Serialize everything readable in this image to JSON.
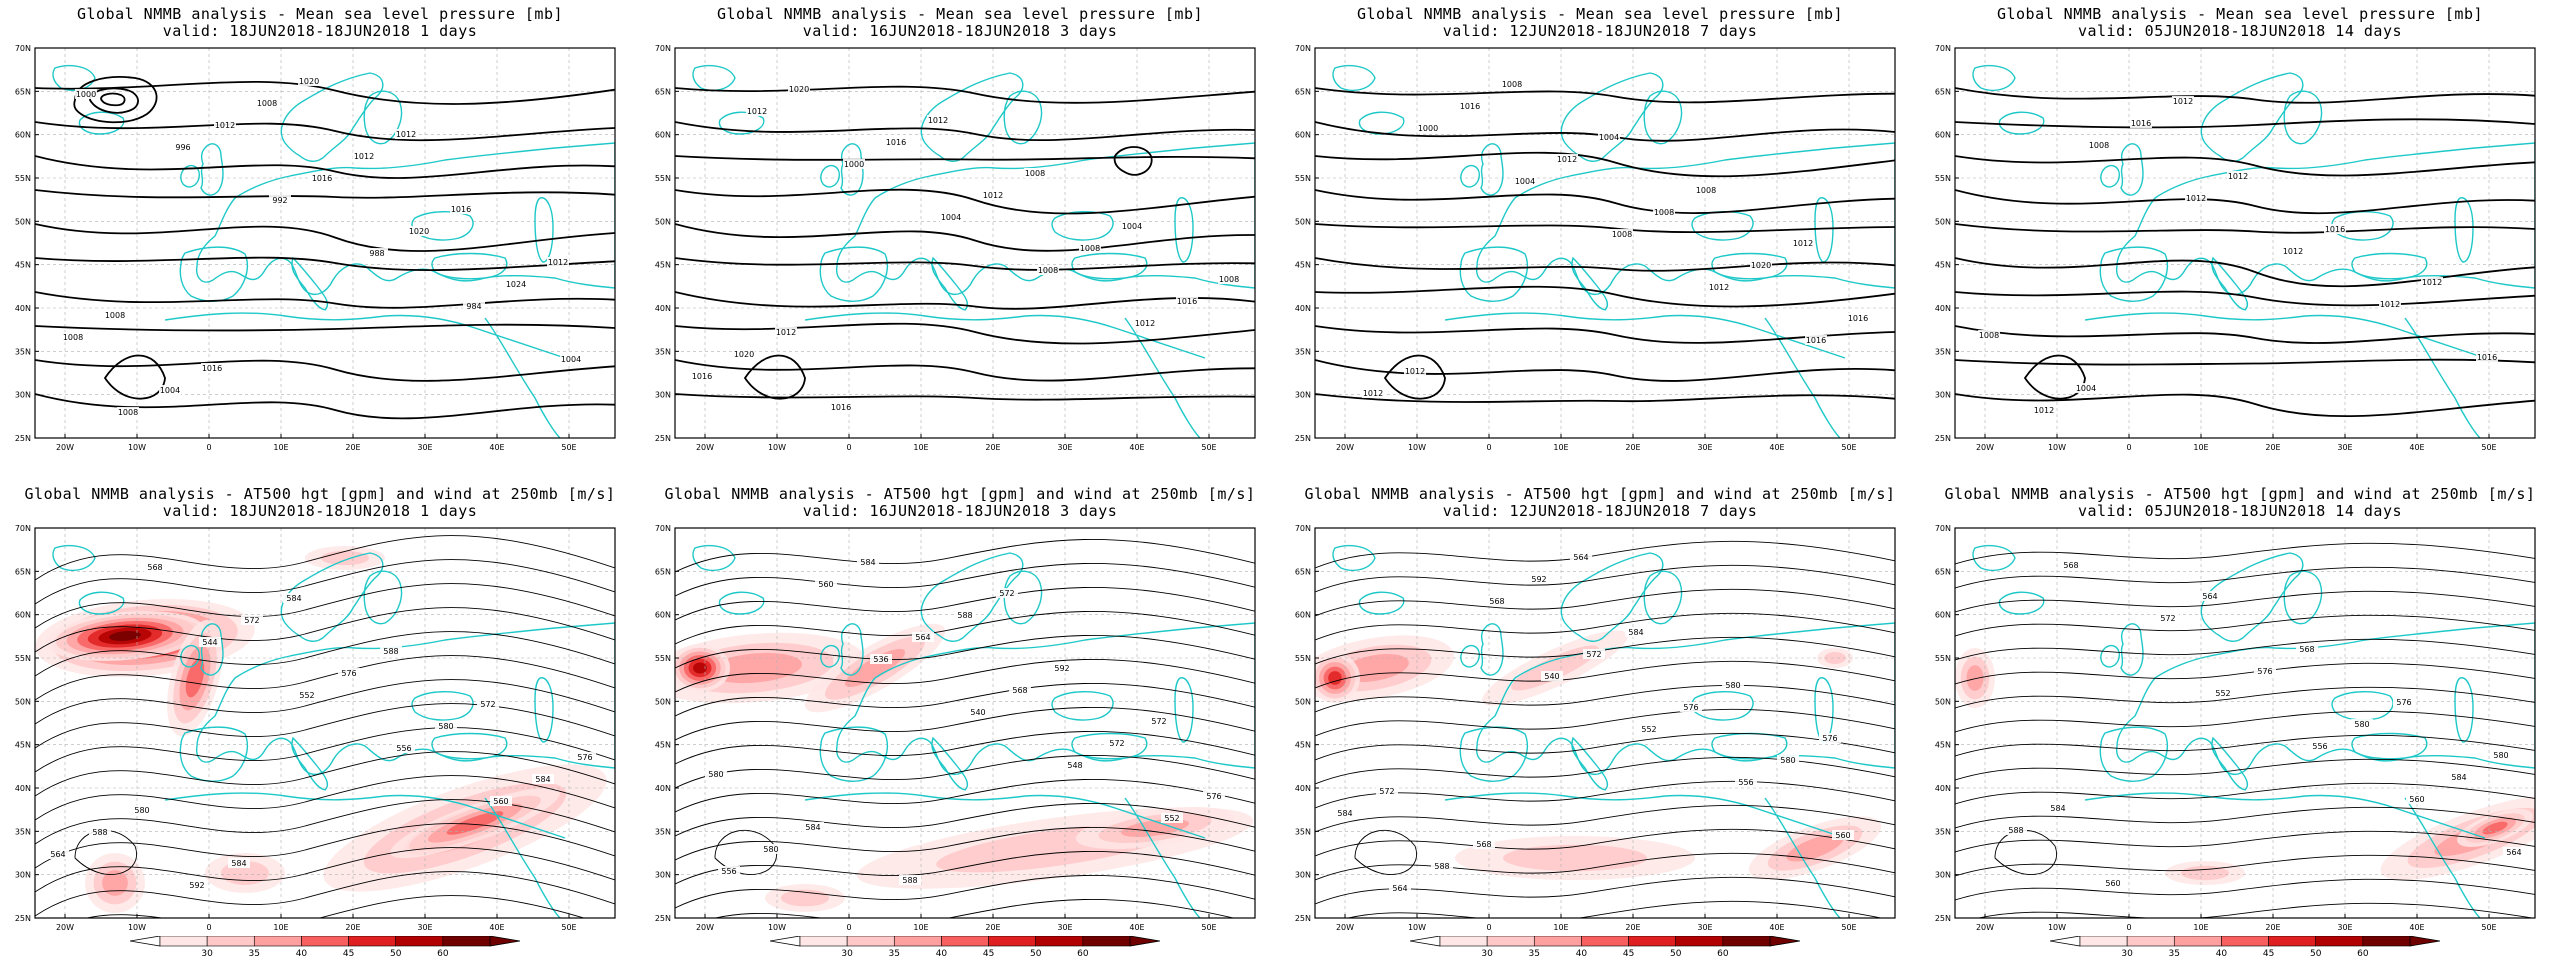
{
  "panels": [
    {
      "row": 0,
      "col": 0,
      "title1": "Global NMMB analysis - Mean sea level pressure [mb]",
      "title2": "valid: 18JUN2018-18JUN2018   1 days"
    },
    {
      "row": 0,
      "col": 1,
      "title1": "Global NMMB analysis - Mean sea level pressure [mb]",
      "title2": "valid: 16JUN2018-18JUN2018   3 days"
    },
    {
      "row": 0,
      "col": 2,
      "title1": "Global NMMB analysis - Mean sea level pressure [mb]",
      "title2": "valid: 12JUN2018-18JUN2018   7 days"
    },
    {
      "row": 0,
      "col": 3,
      "title1": "Global NMMB analysis - Mean sea level pressure [mb]",
      "title2": "valid: 05JUN2018-18JUN2018   14 days"
    },
    {
      "row": 1,
      "col": 0,
      "title1": "Global NMMB analysis - AT500 hgt [gpm] and wind at 250mb [m/s]",
      "title2": "valid: 18JUN2018-18JUN2018   1 days"
    },
    {
      "row": 1,
      "col": 1,
      "title1": "Global NMMB analysis - AT500 hgt [gpm] and wind at 250mb [m/s]",
      "title2": "valid: 16JUN2018-18JUN2018   3 days"
    },
    {
      "row": 1,
      "col": 2,
      "title1": "Global NMMB analysis - AT500 hgt [gpm] and wind at 250mb [m/s]",
      "title2": "valid: 12JUN2018-18JUN2018   7 days"
    },
    {
      "row": 1,
      "col": 3,
      "title1": "Global NMMB analysis - AT500 hgt [gpm] and wind at 250mb [m/s]",
      "title2": "valid: 05JUN2018-18JUN2018   14 days"
    }
  ],
  "lat_ticks": [
    "70N",
    "65N",
    "60N",
    "55N",
    "50N",
    "45N",
    "40N",
    "35N",
    "30N",
    "25N"
  ],
  "lon_ticks": [
    "20W",
    "10W",
    "0",
    "10E",
    "20E",
    "30E",
    "40E",
    "50E"
  ],
  "colorbar": {
    "labels": [
      "30",
      "35",
      "40",
      "45",
      "50",
      "60"
    ],
    "colors": [
      "#ffe6e6",
      "#ffc8c8",
      "#ffa0a0",
      "#f86060",
      "#e02020",
      "#b00000",
      "#700000"
    ]
  },
  "colors": {
    "coast": "#1fc8c8",
    "contour": "#000000",
    "grid": "#b0b0b0"
  },
  "slp_labels": [
    [
      "1000",
      "996",
      "992",
      "988",
      "984",
      "1004",
      "1008",
      "1012",
      "1016",
      "1020",
      "1024",
      "1008",
      "1004",
      "1008",
      "1012",
      "1016",
      "1012",
      "1008",
      "1016",
      "1020",
      "1012"
    ],
    [
      "1012",
      "1000",
      "1004",
      "1008",
      "1012",
      "1016",
      "1020",
      "1016",
      "1012",
      "1008",
      "1016",
      "1020",
      "1016",
      "1012",
      "1008",
      "1004",
      "1008",
      "1012"
    ],
    [
      "1000",
      "1004",
      "1008",
      "1012",
      "1016",
      "1012",
      "1016",
      "1012",
      "1008",
      "1020",
      "1016",
      "1012",
      "1008",
      "1004",
      "1008",
      "1012"
    ],
    [
      "1008",
      "1012",
      "1012",
      "1012",
      "1016",
      "1012",
      "1016",
      "1012",
      "1016",
      "1012",
      "1008",
      "1004",
      "1012"
    ]
  ],
  "hgt_labels": [
    [
      "544",
      "552",
      "556",
      "560",
      "564",
      "568",
      "572",
      "576",
      "580",
      "584",
      "588",
      "592",
      "584",
      "588",
      "572",
      "576",
      "580",
      "584"
    ],
    [
      "536",
      "540",
      "548",
      "552",
      "556",
      "560",
      "564",
      "568",
      "572",
      "576",
      "580",
      "584",
      "588",
      "592",
      "572",
      "580",
      "584",
      "588",
      "572"
    ],
    [
      "540",
      "552",
      "556",
      "560",
      "564",
      "568",
      "572",
      "576",
      "580",
      "584",
      "588",
      "592",
      "584",
      "580",
      "576",
      "572",
      "568",
      "564"
    ],
    [
      "552",
      "556",
      "560",
      "564",
      "568",
      "572",
      "576",
      "580",
      "584",
      "588",
      "560",
      "564",
      "568",
      "576",
      "580",
      "584"
    ]
  ]
}
